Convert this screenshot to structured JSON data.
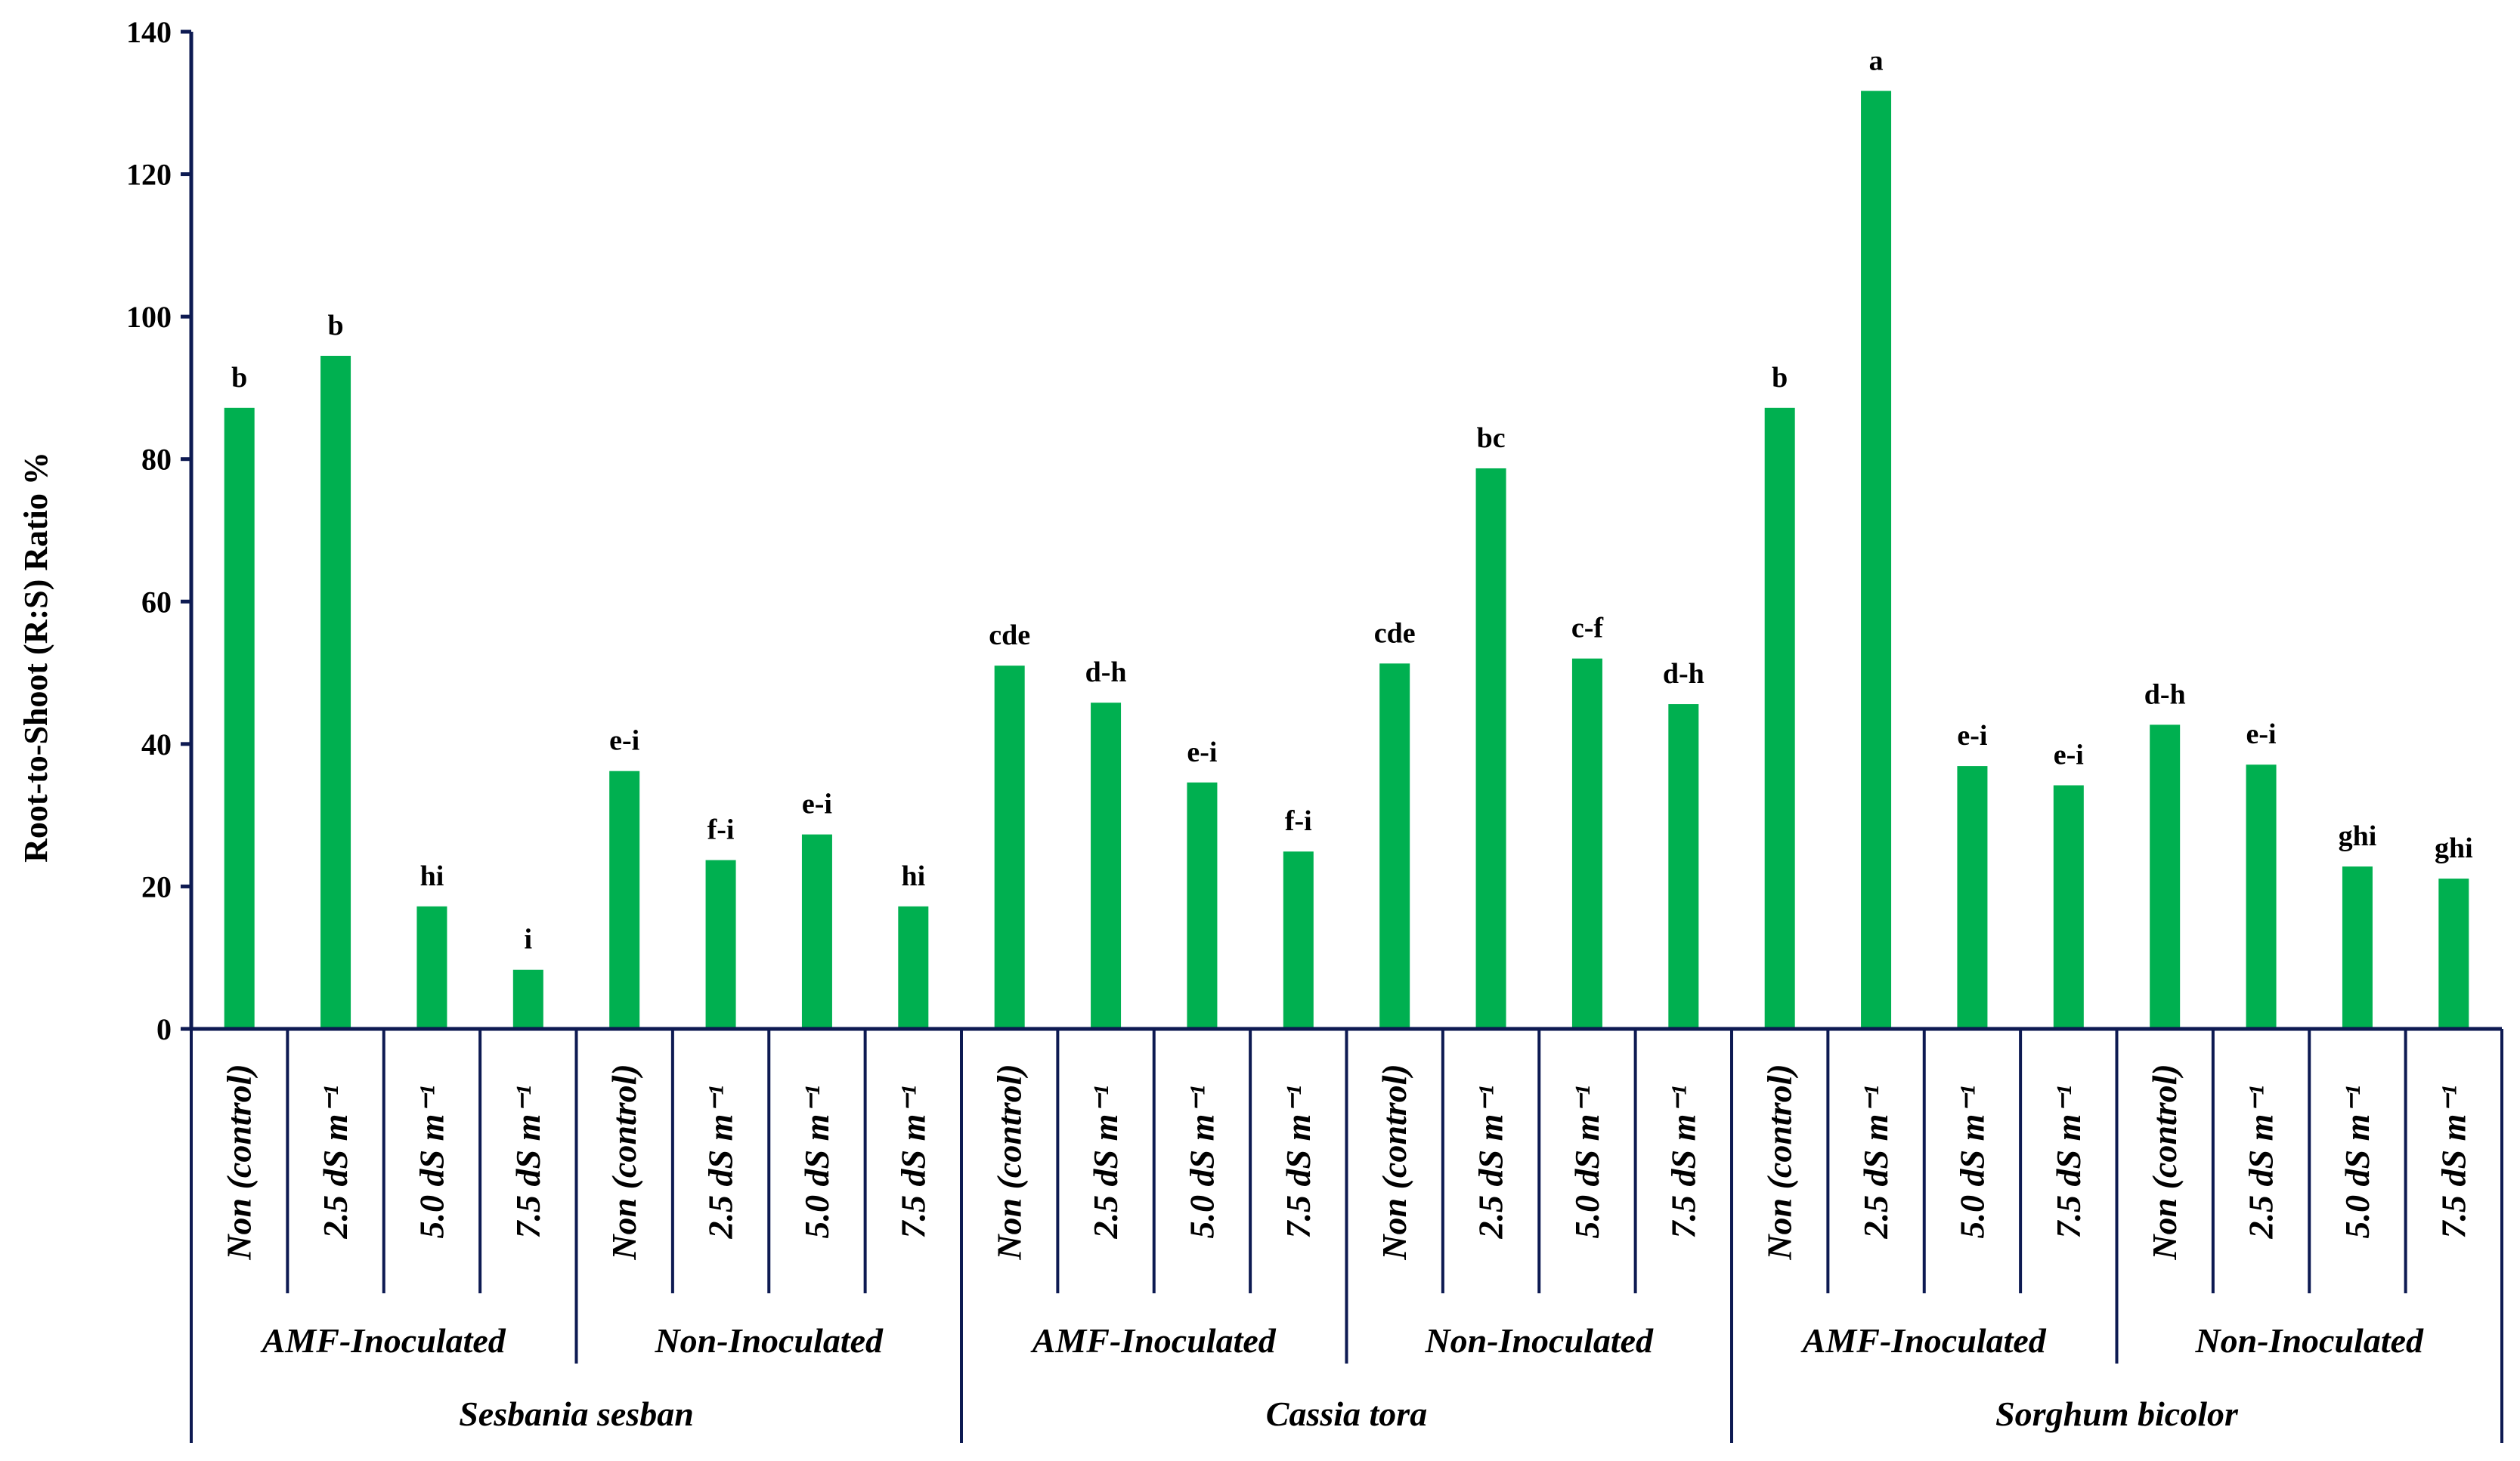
{
  "chart_data": {
    "type": "bar",
    "title": "",
    "xlabel": "",
    "ylabel": "Root-to-Shoot (R:S) Ratio %",
    "ylim": [
      0,
      140
    ],
    "yticks": [
      "0",
      "20",
      "40",
      "60",
      "80",
      "100",
      "120",
      "140"
    ],
    "grid": false,
    "legend": "none",
    "bar_color": "#00b050",
    "axis_color": "#0d1a52",
    "categories": [
      "Non (control)",
      "2.5 dS m⁻¹",
      "5.0 dS m⁻¹",
      "7.5 dS m⁻¹",
      "Non (control)",
      "2.5 dS m⁻¹",
      "5.0 dS m⁻¹",
      "7.5 dS m⁻¹",
      "Non (control)",
      "2.5 dS m⁻¹",
      "5.0 dS m⁻¹",
      "7.5 dS m⁻¹",
      "Non (control)",
      "2.5 dS m⁻¹",
      "5.0 dS m⁻¹",
      "7.5 dS m⁻¹",
      "Non (control)",
      "2.5 dS m⁻¹",
      "5.0 dS m⁻¹",
      "7.5 dS m⁻¹",
      "Non (control)",
      "2.5 dS m⁻¹",
      "5.0 dS m⁻¹",
      "7.5 dS m⁻¹"
    ],
    "values": [
      87.2,
      94.5,
      17.2,
      8.3,
      36.2,
      23.7,
      27.3,
      17.2,
      51.0,
      45.8,
      34.6,
      24.9,
      51.3,
      78.7,
      52.0,
      45.6,
      87.2,
      131.7,
      36.9,
      34.2,
      42.7,
      37.1,
      22.8,
      21.1
    ],
    "data_labels": [
      "b",
      "b",
      "hi",
      "i",
      "e-i",
      "f-i",
      "e-i",
      "hi",
      "cde",
      "d-h",
      "e-i",
      "f-i",
      "cde",
      "bc",
      "c-f",
      "d-h",
      "b",
      "a",
      "e-i",
      "e-i",
      "d-h",
      "e-i",
      "ghi",
      "ghi"
    ],
    "groups": [
      "AMF-Inoculated",
      "Non-Inoculated",
      "AMF-Inoculated",
      "Non-Inoculated",
      "AMF-Inoculated",
      "Non-Inoculated"
    ],
    "species": [
      "Sesbania sesban",
      "Cassia tora",
      "Sorghum bicolor"
    ]
  }
}
